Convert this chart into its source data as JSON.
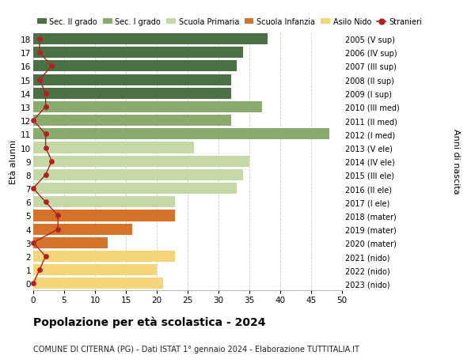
{
  "ages": [
    18,
    17,
    16,
    15,
    14,
    13,
    12,
    11,
    10,
    9,
    8,
    7,
    6,
    5,
    4,
    3,
    2,
    1,
    0
  ],
  "bar_values": [
    38,
    34,
    33,
    32,
    32,
    37,
    32,
    48,
    26,
    35,
    34,
    33,
    23,
    23,
    16,
    12,
    23,
    20,
    21
  ],
  "stranieri": [
    1,
    1,
    3,
    1,
    2,
    2,
    0,
    2,
    2,
    3,
    2,
    0,
    2,
    4,
    4,
    0,
    2,
    1,
    0
  ],
  "right_labels": [
    "2005 (V sup)",
    "2006 (IV sup)",
    "2007 (III sup)",
    "2008 (II sup)",
    "2009 (I sup)",
    "2010 (III med)",
    "2011 (II med)",
    "2012 (I med)",
    "2013 (V ele)",
    "2014 (IV ele)",
    "2015 (III ele)",
    "2016 (II ele)",
    "2017 (I ele)",
    "2018 (mater)",
    "2019 (mater)",
    "2020 (mater)",
    "2021 (nido)",
    "2022 (nido)",
    "2023 (nido)"
  ],
  "bar_colors_by_age": {
    "18": "#4a7043",
    "17": "#4a7043",
    "16": "#4a7043",
    "15": "#4a7043",
    "14": "#4a7043",
    "13": "#8aaa6e",
    "12": "#8aaa6e",
    "11": "#8aaa6e",
    "10": "#c5d9a8",
    "9": "#c5d9a8",
    "8": "#c5d9a8",
    "7": "#c5d9a8",
    "6": "#c5d9a8",
    "5": "#d4722a",
    "4": "#d4722a",
    "3": "#d4722a",
    "2": "#f5d57a",
    "1": "#f5d57a",
    "0": "#f5d57a"
  },
  "legend_labels": [
    "Sec. II grado",
    "Sec. I grado",
    "Scuola Primaria",
    "Scuola Infanzia",
    "Asilo Nido",
    "Stranieri"
  ],
  "legend_colors": [
    "#4a7043",
    "#8aaa6e",
    "#c5d9a8",
    "#d4722a",
    "#f5d57a",
    "#b22020"
  ],
  "ylabel": "Età alunni",
  "ylabel_right": "Anni di nascita",
  "title": "Popolazione per età scolastica - 2024",
  "subtitle": "COMUNE DI CITERNA (PG) - Dati ISTAT 1° gennaio 2024 - Elaborazione TUTTITALIA.IT",
  "xlim": [
    0,
    50
  ],
  "xticks": [
    0,
    5,
    10,
    15,
    20,
    25,
    30,
    35,
    40,
    45,
    50
  ],
  "stranieri_color": "#b22020",
  "background_color": "#ffffff",
  "grid_color": "#cccccc"
}
